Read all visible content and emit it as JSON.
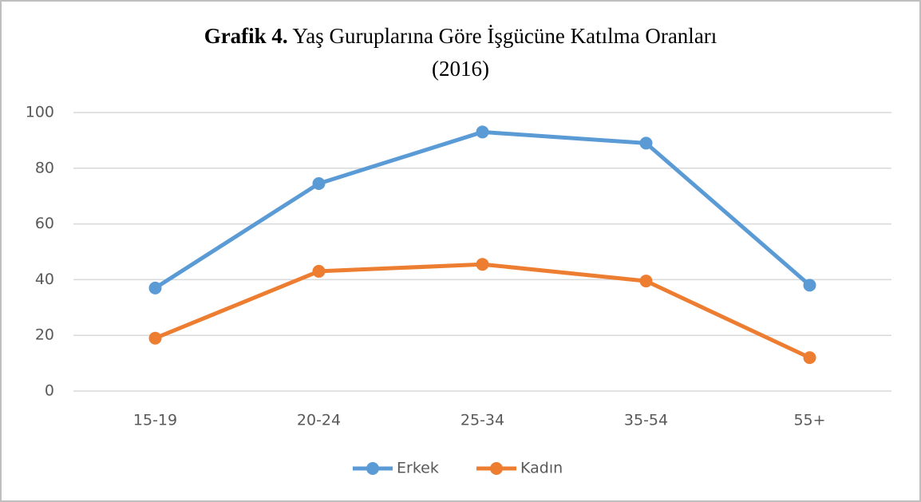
{
  "chart_data": {
    "type": "line",
    "title": [
      "Grafik 4.",
      "Yaş Guruplarına Göre İşgücüne Katılma Oranları",
      "(2016)"
    ],
    "categories": [
      "15-19",
      "20-24",
      "25-34",
      "35-54",
      "55+"
    ],
    "series": [
      {
        "name": "Erkek",
        "color": "#5b9bd5",
        "values": [
          37,
          74.5,
          93,
          89,
          38
        ]
      },
      {
        "name": "Kadın",
        "color": "#ed7d31",
        "values": [
          19,
          43,
          45.5,
          39.5,
          12
        ]
      }
    ],
    "ylim": [
      0,
      100
    ],
    "yticks": [
      0,
      20,
      40,
      60,
      80,
      100
    ],
    "grid": true
  }
}
